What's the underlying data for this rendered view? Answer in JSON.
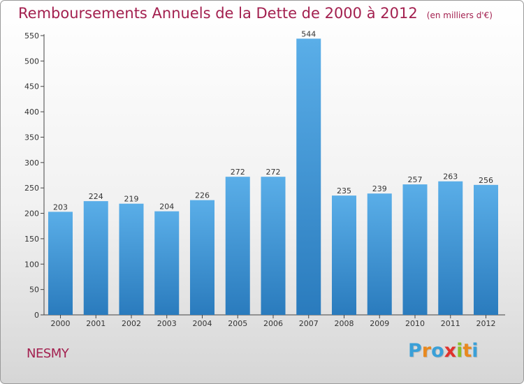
{
  "header": {
    "title": "Remboursements Annuels de la Dette de 2000 à 2012",
    "unit": "(en milliers d'€)"
  },
  "footer": {
    "city": "NESMY",
    "logo_letters": [
      "P",
      "r",
      "o",
      "x",
      "i",
      "t",
      "i"
    ],
    "logo_colors": [
      "#3aa0d8",
      "#e8891f",
      "#3aa0d8",
      "#e0322d",
      "#8bbf2a",
      "#e8891f",
      "#3aa0d8"
    ]
  },
  "chart_data": {
    "type": "bar",
    "title": "Remboursements Annuels de la Dette de 2000 à 2012",
    "xlabel": "",
    "ylabel": "",
    "categories": [
      "2000",
      "2001",
      "2002",
      "2003",
      "2004",
      "2005",
      "2006",
      "2007",
      "2008",
      "2009",
      "2010",
      "2011",
      "2012"
    ],
    "values": [
      203,
      224,
      219,
      204,
      226,
      272,
      272,
      544,
      235,
      239,
      257,
      263,
      256
    ],
    "ylim": [
      0,
      550
    ],
    "yticks": [
      0,
      50,
      100,
      150,
      200,
      250,
      300,
      350,
      400,
      450,
      500,
      550
    ],
    "grid": false,
    "legend": "none",
    "bar_color_top": "#5aaee8",
    "bar_color_bottom": "#2a7bbd"
  }
}
